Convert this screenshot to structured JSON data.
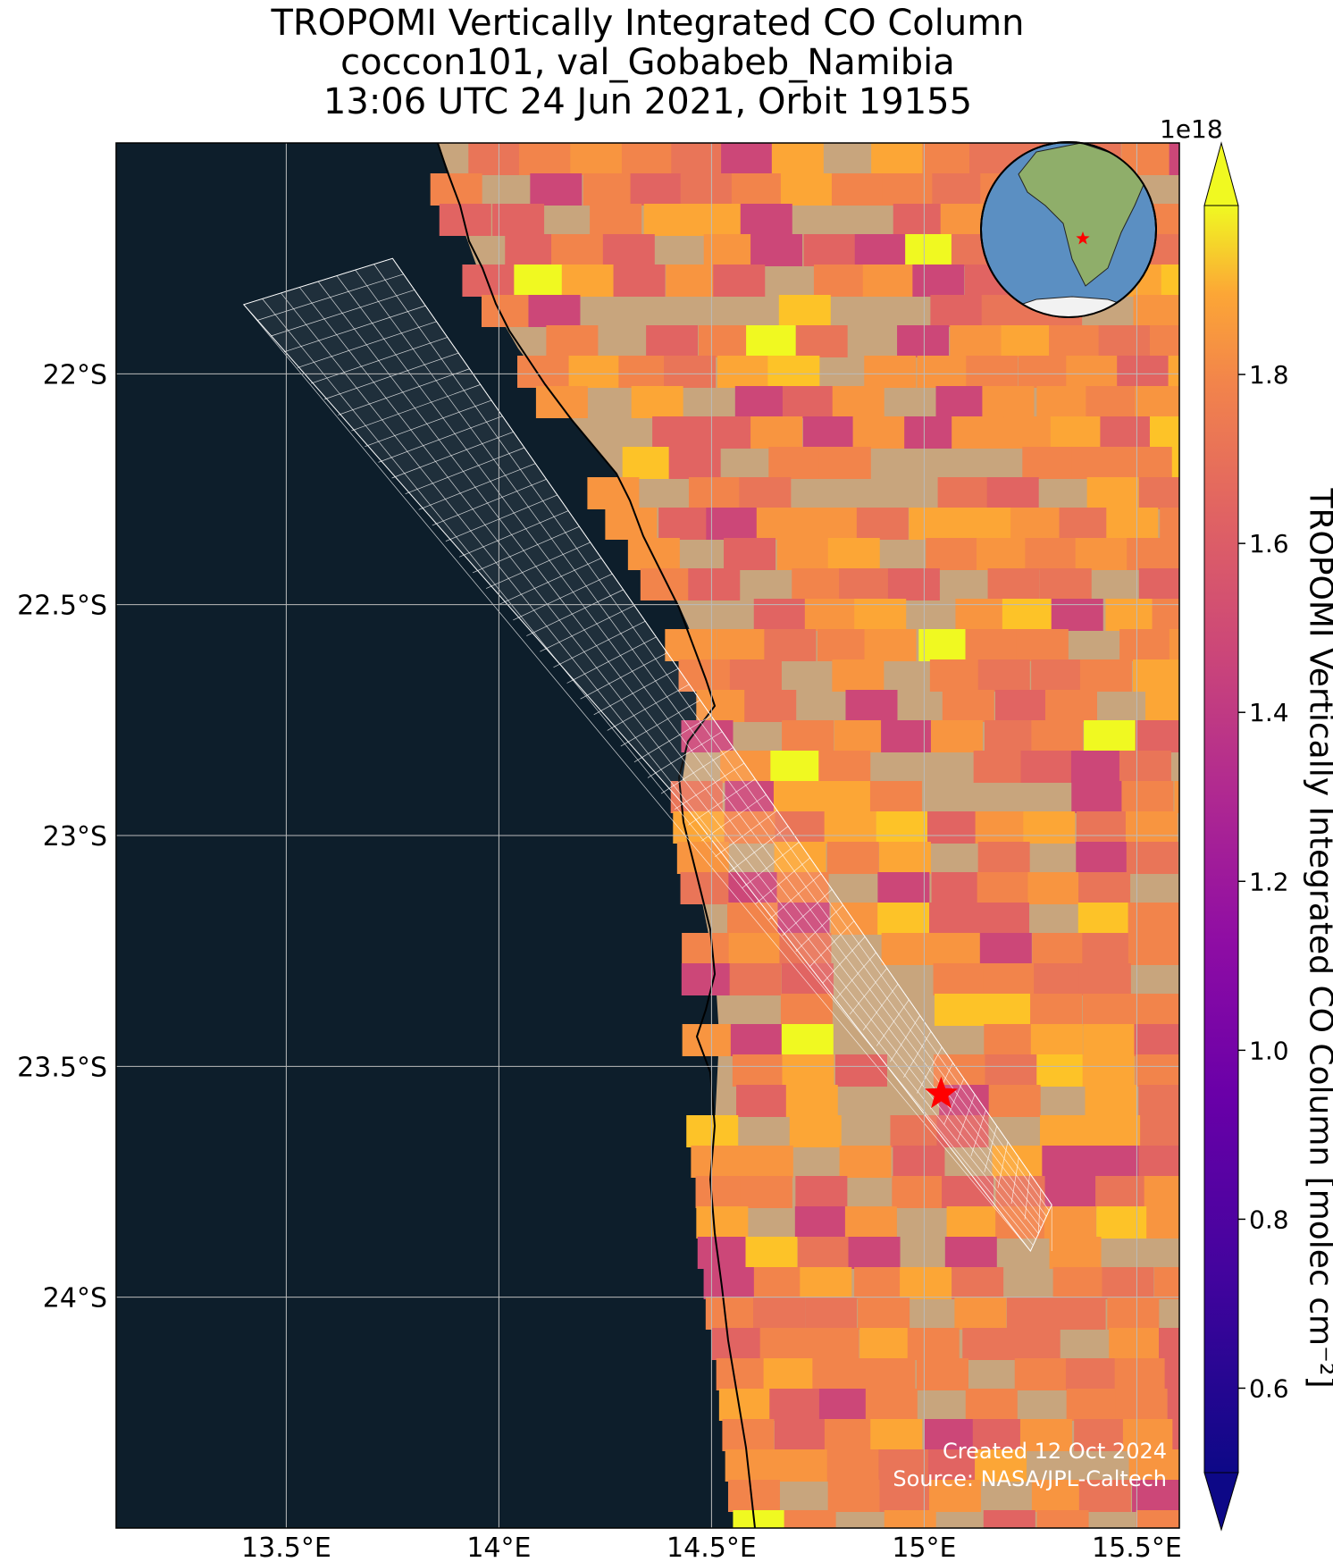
{
  "title": {
    "line1": "TROPOMI Vertically Integrated CO Column",
    "line2": "coccon101, val_Gobabeb_Namibia",
    "line3": "13:06 UTC 24 Jun 2021, Orbit 19155"
  },
  "axes": {
    "x_ticks": [
      {
        "value": 13.5,
        "label": "13.5°E"
      },
      {
        "value": 14.0,
        "label": "14°E"
      },
      {
        "value": 14.5,
        "label": "14.5°E"
      },
      {
        "value": 15.0,
        "label": "15°E"
      },
      {
        "value": 15.5,
        "label": "15.5°E"
      }
    ],
    "y_ticks": [
      {
        "value": -22.0,
        "label": "22°S"
      },
      {
        "value": -22.5,
        "label": "22.5°S"
      },
      {
        "value": -23.0,
        "label": "23°S"
      },
      {
        "value": -23.5,
        "label": "23.5°S"
      },
      {
        "value": -24.0,
        "label": "24°S"
      }
    ],
    "lon_range": [
      13.1,
      15.6
    ],
    "lat_range": [
      -24.5,
      -21.5
    ],
    "gridlines": true
  },
  "colorbar": {
    "label": "TROPOMI Vertically Integrated CO Column [molec cm$^{-2}$]",
    "label_display": "TROPOMI Vertically Integrated CO Column [molec cm⁻²]",
    "unit_multiplier": "1e18",
    "range": [
      0.5,
      2.0
    ],
    "ticks": [
      {
        "value": 0.6,
        "label": "0.6"
      },
      {
        "value": 0.8,
        "label": "0.8"
      },
      {
        "value": 1.0,
        "label": "1.0"
      },
      {
        "value": 1.2,
        "label": "1.2"
      },
      {
        "value": 1.4,
        "label": "1.4"
      },
      {
        "value": 1.6,
        "label": "1.6"
      },
      {
        "value": 1.8,
        "label": "1.8"
      }
    ],
    "colormap": "plasma",
    "extend": "both"
  },
  "site": {
    "lon": 15.04,
    "lat": -23.56,
    "marker": "red-star"
  },
  "footer": {
    "created": "Created 12 Oct 2024",
    "source": "Source: NASA/JPL-Caltech"
  },
  "colors": {
    "ocean": "#0d1e2b",
    "land": "#c8a57d",
    "grid": "#bbbbbb",
    "coastline": "#000000",
    "site_marker": "#ff0000",
    "track": "#ffffff"
  },
  "icons": {
    "inset": "globe-icon",
    "site": "star-icon"
  }
}
